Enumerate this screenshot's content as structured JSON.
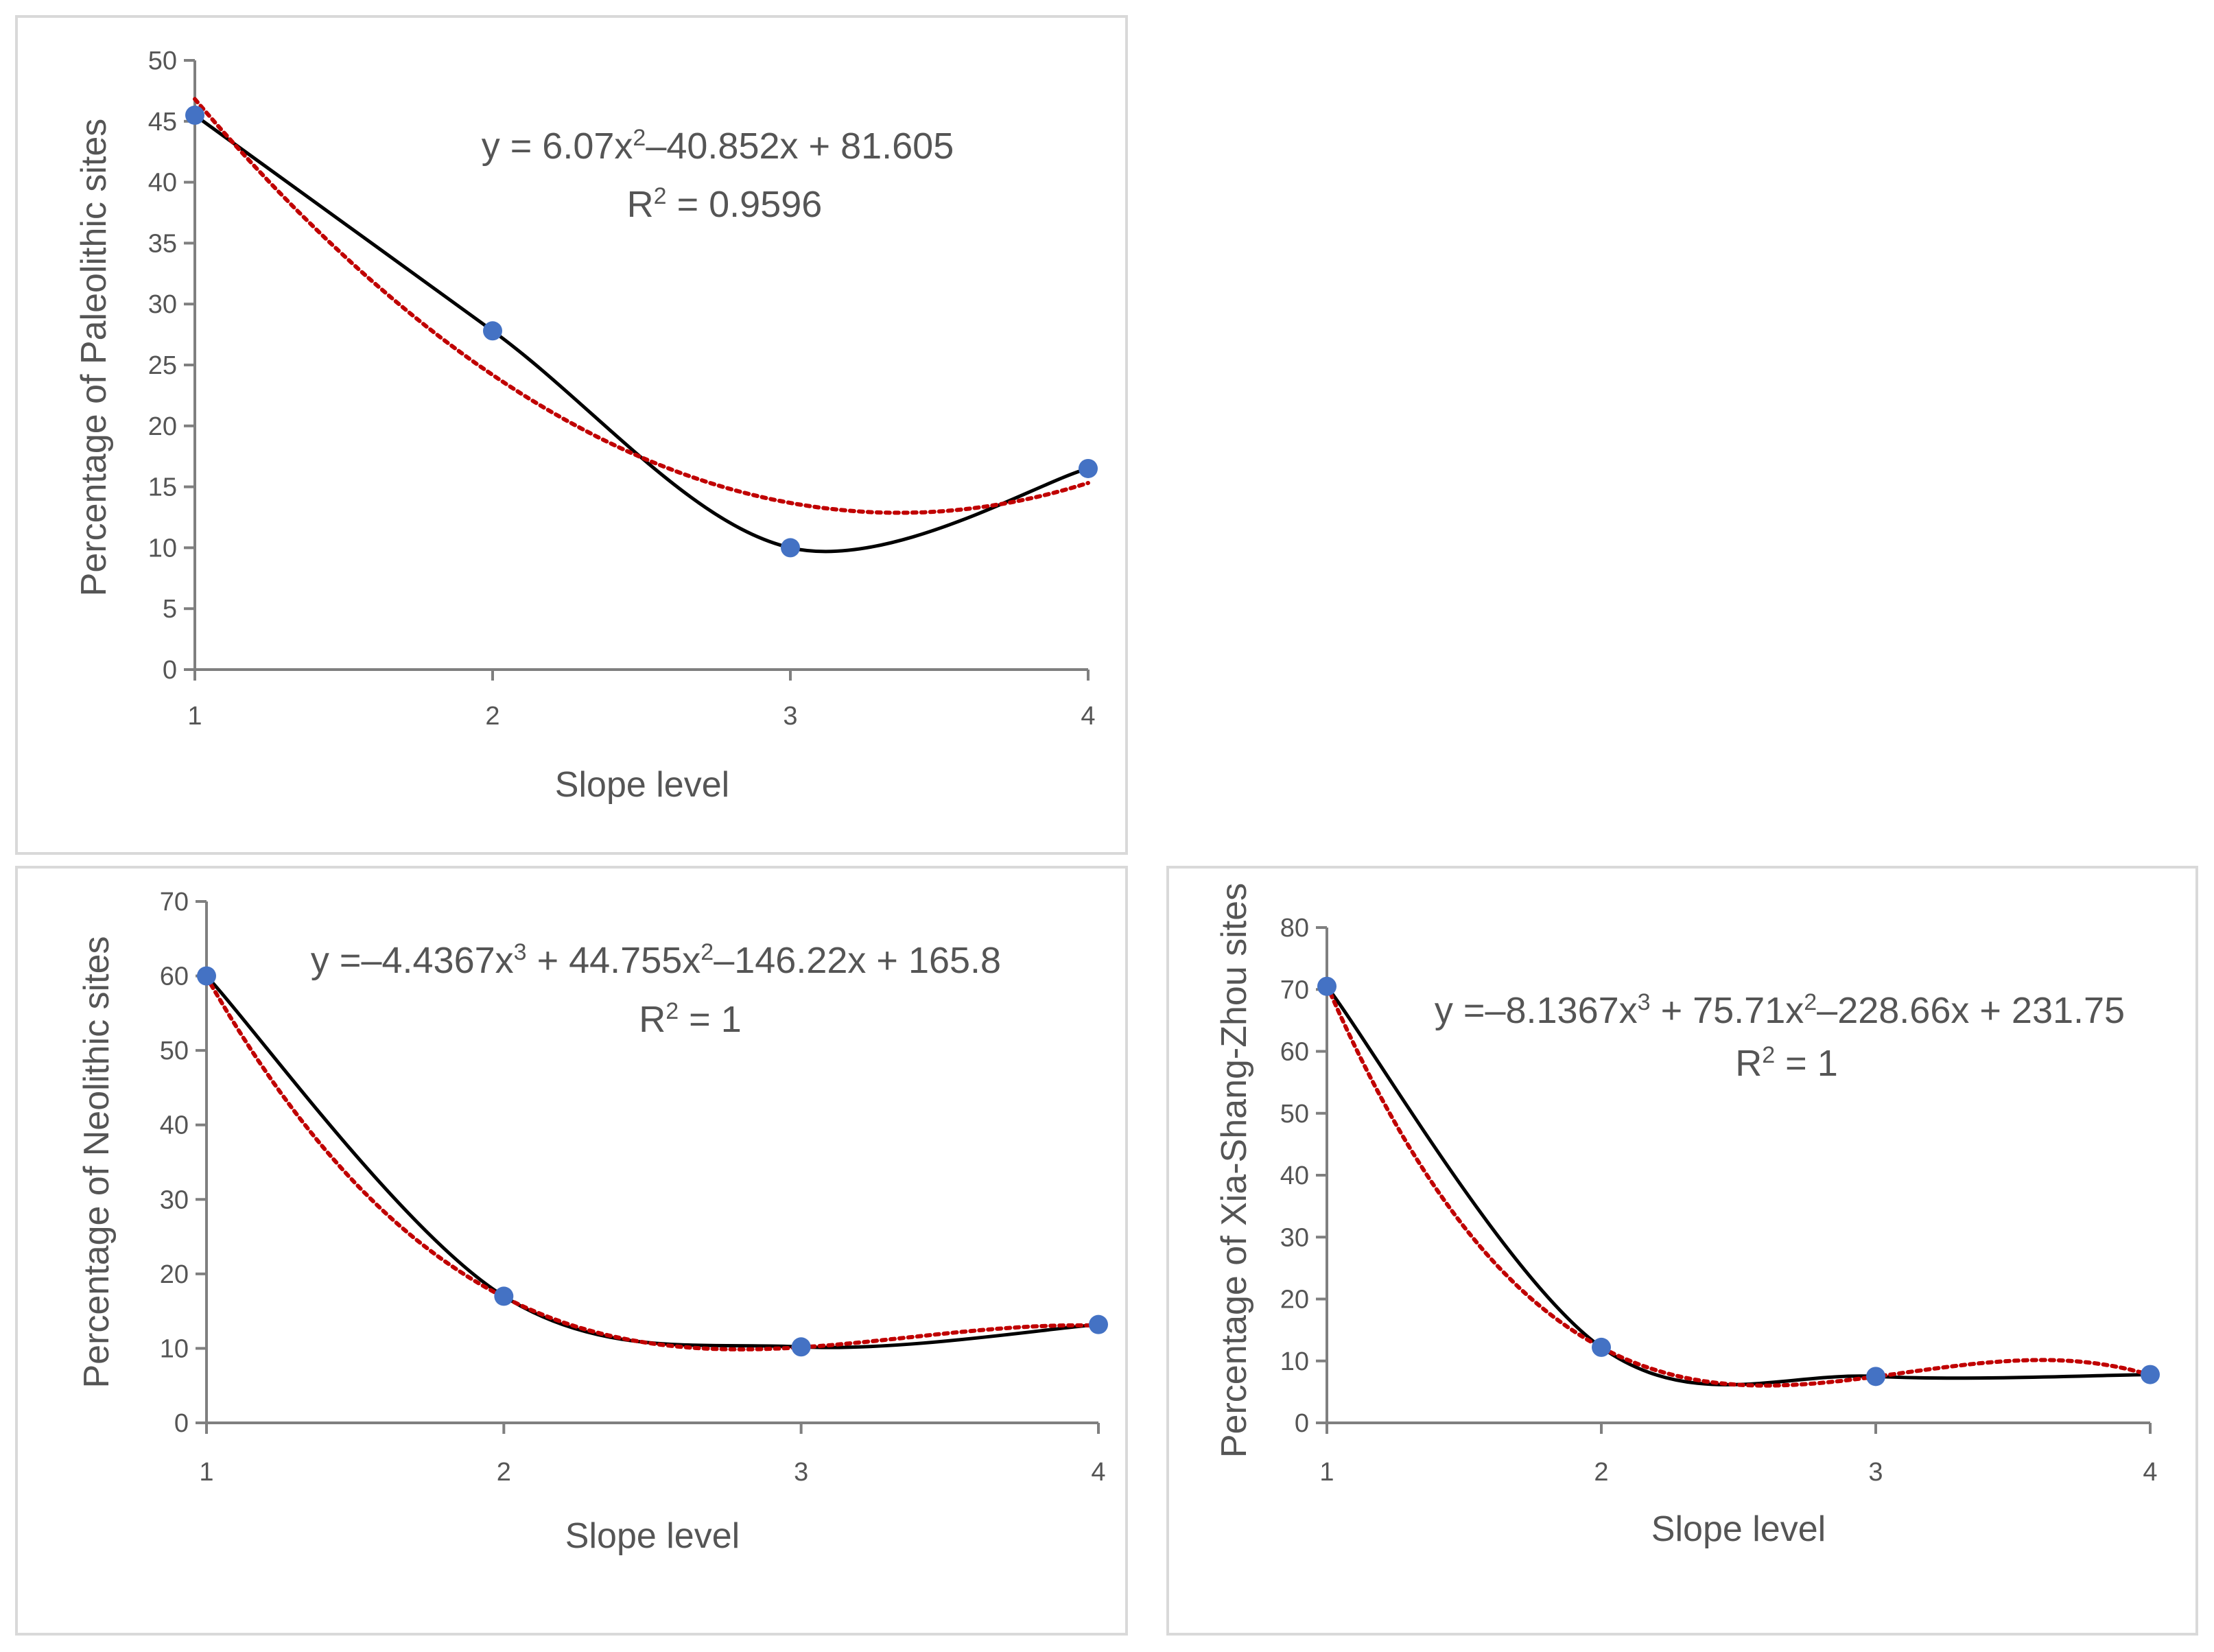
{
  "chart_data": [
    {
      "type": "scatter",
      "xlabel": "Slope level",
      "ylabel": "Percentage of Paleolithic sites",
      "x": [
        1,
        2,
        3,
        4
      ],
      "y": [
        45.5,
        27.8,
        10,
        16.5
      ],
      "xlim": [
        1,
        4
      ],
      "ylim": [
        0,
        50
      ],
      "xticks": [
        "1",
        "2",
        "3",
        "4"
      ],
      "yticks": [
        "0",
        "5",
        "10",
        "15",
        "20",
        "25",
        "30",
        "35",
        "40",
        "45",
        "50"
      ],
      "trendline": {
        "type": "polynomial",
        "coefficients": [
          6.07,
          -40.852,
          81.605
        ],
        "equation_main": "y = 6.07x",
        "equation_parts": [
          {
            "text": "y = 6.07x"
          },
          {
            "text": "2",
            "sup": true
          },
          {
            "text": "–40.852x + 81.605"
          }
        ],
        "r2_parts": [
          {
            "text": "R"
          },
          {
            "text": "2",
            "sup": true
          },
          {
            "text": " = 0.9596"
          }
        ]
      },
      "colors": {
        "points": "#4472c4",
        "line": "#000000",
        "trend": "#c00000"
      }
    },
    {
      "type": "scatter",
      "xlabel": "Slope level",
      "ylabel": "Percentage of Neolithic sites",
      "x": [
        1,
        2,
        3,
        4
      ],
      "y": [
        60,
        17,
        10.2,
        13.2
      ],
      "xlim": [
        1,
        4
      ],
      "ylim": [
        0,
        70
      ],
      "xticks": [
        "1",
        "2",
        "3",
        "4"
      ],
      "yticks": [
        "0",
        "10",
        "20",
        "30",
        "40",
        "50",
        "60",
        "70"
      ],
      "trendline": {
        "type": "polynomial",
        "coefficients": [
          -4.4367,
          44.755,
          -146.22,
          165.8
        ],
        "equation_parts": [
          {
            "text": "y =–4.4367x"
          },
          {
            "text": "3",
            "sup": true
          },
          {
            "text": " + 44.755x"
          },
          {
            "text": "2",
            "sup": true
          },
          {
            "text": "–146.22x + 165.8"
          }
        ],
        "r2_parts": [
          {
            "text": "R"
          },
          {
            "text": "2",
            "sup": true
          },
          {
            "text": " = 1"
          }
        ]
      },
      "colors": {
        "points": "#4472c4",
        "line": "#000000",
        "trend": "#c00000"
      }
    },
    {
      "type": "scatter",
      "xlabel": "Slope level",
      "ylabel": "Percentage of Xia-Shang-Zhou sites",
      "x": [
        1,
        2,
        3,
        4
      ],
      "y": [
        70.5,
        12.2,
        7.5,
        7.8
      ],
      "xlim": [
        1,
        4
      ],
      "ylim": [
        0,
        80
      ],
      "xticks": [
        "1",
        "2",
        "3",
        "4"
      ],
      "yticks": [
        "0",
        "10",
        "20",
        "30",
        "40",
        "50",
        "60",
        "70",
        "80"
      ],
      "trendline": {
        "type": "polynomial",
        "coefficients": [
          -8.1367,
          75.71,
          -228.66,
          231.75
        ],
        "equation_parts": [
          {
            "text": "y =–8.1367x"
          },
          {
            "text": "3",
            "sup": true
          },
          {
            "text": " + 75.71x"
          },
          {
            "text": "2",
            "sup": true
          },
          {
            "text": "–228.66x + 231.75"
          }
        ],
        "r2_parts": [
          {
            "text": "R"
          },
          {
            "text": "2",
            "sup": true
          },
          {
            "text": " = 1"
          }
        ]
      },
      "colors": {
        "points": "#4472c4",
        "line": "#000000",
        "trend": "#c00000"
      }
    }
  ]
}
